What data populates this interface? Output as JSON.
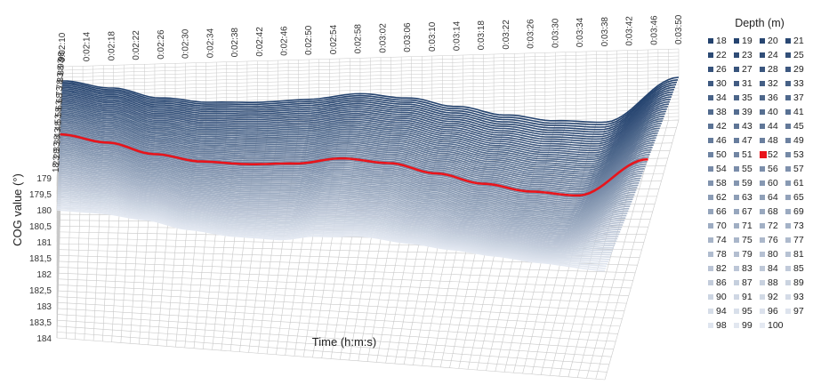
{
  "chart_data": {
    "type": "line",
    "subtype": "3d-line",
    "title": "",
    "xlabel": "Time (h:m:s)",
    "ylabel": "COG value (°)",
    "zlabel": "",
    "time_categories": [
      "0:02:10",
      "0:02:14",
      "0:02:18",
      "0:02:22",
      "0:02:26",
      "0:02:30",
      "0:02:34",
      "0:02:38",
      "0:02:42",
      "0:02:46",
      "0:02:50",
      "0:02:54",
      "0:02:58",
      "0:03:02",
      "0:03:06",
      "0:03:10",
      "0:03:14",
      "0:03:18",
      "0:03:22",
      "0:03:26",
      "0:03:30",
      "0:03:34",
      "0:03:38",
      "0:03:42",
      "0:03:46",
      "0:03:50"
    ],
    "depth_categories": [
      "18",
      "23",
      "28",
      "33",
      "38",
      "43",
      "48",
      "53",
      "58",
      "63",
      "68",
      "73",
      "78",
      "83",
      "88",
      "93",
      "98"
    ],
    "y_ticks": [
      "179",
      "179,5",
      "180",
      "180,5",
      "181",
      "181,5",
      "182",
      "182,5",
      "183",
      "183,5",
      "184"
    ],
    "ylim": [
      179,
      184
    ],
    "y_reversed": true,
    "legend": {
      "title": "Depth (m)",
      "position": "right"
    },
    "series_depths_m": [
      18,
      19,
      20,
      21,
      22,
      23,
      24,
      25,
      26,
      27,
      28,
      29,
      30,
      31,
      32,
      33,
      34,
      35,
      36,
      37,
      38,
      39,
      40,
      41,
      42,
      43,
      44,
      45,
      46,
      47,
      48,
      49,
      50,
      51,
      52,
      53,
      54,
      55,
      56,
      57,
      58,
      59,
      60,
      61,
      62,
      63,
      64,
      65,
      66,
      67,
      68,
      69,
      70,
      71,
      72,
      73,
      74,
      75,
      76,
      77,
      78,
      79,
      80,
      81,
      82,
      83,
      84,
      85,
      86,
      87,
      88,
      89,
      90,
      91,
      92,
      93,
      94,
      95,
      96,
      97,
      98,
      99,
      100
    ],
    "highlighted_depth_m": 52,
    "highlight_color": "#e8141b",
    "series_color_dark": "#23426e",
    "series_color_light": "#e4e9f2",
    "series_profile": {
      "time_index": [
        0,
        2,
        4,
        6,
        8,
        10,
        12,
        14,
        16,
        18,
        20,
        22,
        25
      ],
      "shallow_cog": [
        180.0,
        180.0,
        180.1,
        180.3,
        180.4,
        180.4,
        180.2,
        180.1,
        180.2,
        180.3,
        180.4,
        180.5,
        180.6
      ],
      "deep_cog": [
        180.0,
        180.6,
        181.4,
        181.8,
        181.9,
        181.8,
        181.5,
        181.9,
        182.6,
        183.3,
        183.8,
        184.0,
        181.0
      ]
    }
  }
}
